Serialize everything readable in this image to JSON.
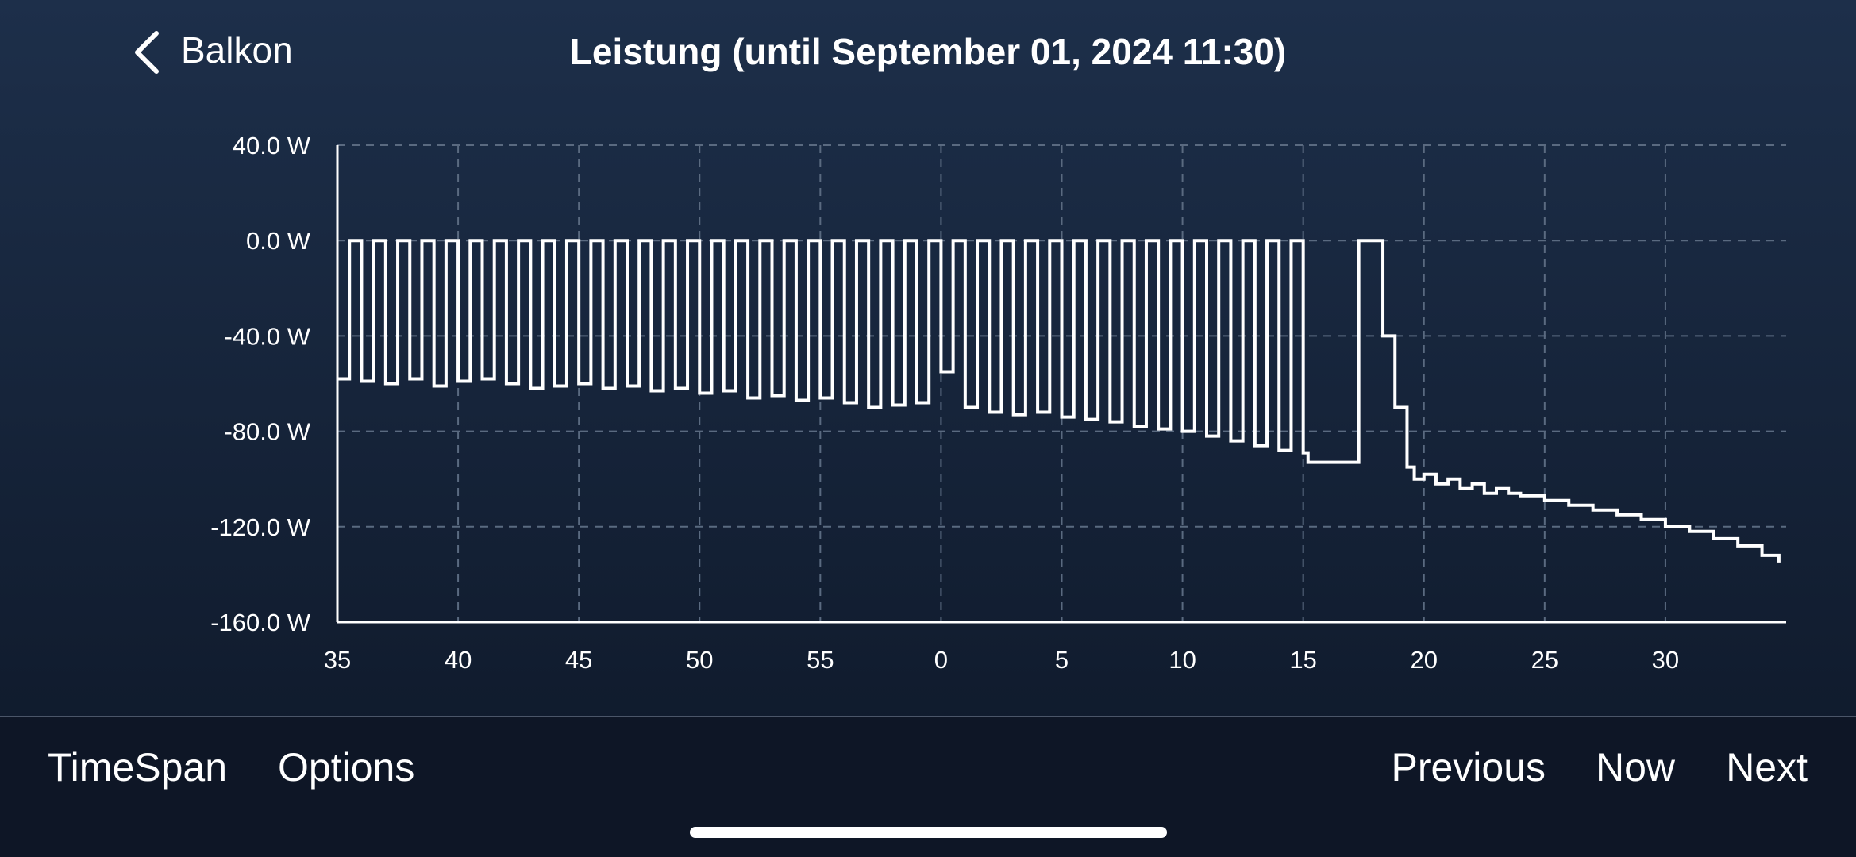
{
  "nav": {
    "back": "Balkon",
    "title": "Leistung (until September 01, 2024 11:30)"
  },
  "chart_data": {
    "type": "line",
    "step": "post",
    "color": "#ffffff",
    "grid": true,
    "xlim": [
      0,
      60
    ],
    "xticks": [
      {
        "value": 0,
        "label": "35"
      },
      {
        "value": 5,
        "label": "40"
      },
      {
        "value": 10,
        "label": "45"
      },
      {
        "value": 15,
        "label": "50"
      },
      {
        "value": 20,
        "label": "55"
      },
      {
        "value": 25,
        "label": "0"
      },
      {
        "value": 30,
        "label": "5"
      },
      {
        "value": 35,
        "label": "10"
      },
      {
        "value": 40,
        "label": "15"
      },
      {
        "value": 45,
        "label": "20"
      },
      {
        "value": 50,
        "label": "25"
      },
      {
        "value": 55,
        "label": "30"
      }
    ],
    "ylim": [
      -160,
      40
    ],
    "yticks": [
      {
        "value": -160,
        "label": "-160.0 W"
      },
      {
        "value": -120,
        "label": "-120.0 W"
      },
      {
        "value": -80,
        "label": "-80.0 W"
      },
      {
        "value": -40,
        "label": "-40.0 W"
      },
      {
        "value": 0,
        "label": "0.0 W"
      },
      {
        "value": 40,
        "label": "40.0 W"
      }
    ],
    "x": [
      0,
      0.5,
      1,
      1.5,
      2,
      2.5,
      3,
      3.5,
      4,
      4.5,
      5,
      5.5,
      6,
      6.5,
      7,
      7.5,
      8,
      8.5,
      9,
      9.5,
      10,
      10.5,
      11,
      11.5,
      12,
      12.5,
      13,
      13.5,
      14,
      14.5,
      15,
      15.5,
      16,
      16.5,
      17,
      17.5,
      18,
      18.5,
      19,
      19.5,
      20,
      20.5,
      21,
      21.5,
      22,
      22.5,
      23,
      23.5,
      24,
      24.5,
      25,
      25.5,
      26,
      26.5,
      27,
      27.5,
      28,
      28.5,
      29,
      29.5,
      30,
      30.5,
      31,
      31.5,
      32,
      32.5,
      33,
      33.5,
      34,
      34.5,
      35,
      35.5,
      36,
      36.5,
      37,
      37.5,
      38,
      38.5,
      39,
      39.5,
      40,
      40.2,
      42.3,
      43.3,
      43.8,
      44.3,
      44.6,
      45,
      45.5,
      46,
      46.5,
      47,
      47.5,
      48,
      48.5,
      49,
      50,
      51,
      52,
      53,
      54,
      55,
      56,
      57,
      58,
      59,
      59.7
    ],
    "values": [
      -58,
      0,
      -59,
      0,
      -60,
      0,
      -58,
      0,
      -61,
      0,
      -59,
      0,
      -58,
      0,
      -60,
      0,
      -62,
      0,
      -61,
      0,
      -60,
      0,
      -62,
      0,
      -61,
      0,
      -63,
      0,
      -62,
      0,
      -64,
      0,
      -63,
      0,
      -66,
      0,
      -65,
      0,
      -67,
      0,
      -66,
      0,
      -68,
      0,
      -70,
      0,
      -69,
      0,
      -68,
      0,
      -55,
      0,
      -70,
      0,
      -72,
      0,
      -73,
      0,
      -72,
      0,
      -74,
      0,
      -75,
      0,
      -76,
      0,
      -78,
      0,
      -79,
      0,
      -80,
      0,
      -82,
      0,
      -84,
      0,
      -86,
      0,
      -88,
      0,
      -89,
      -93,
      0,
      -40,
      -70,
      -95,
      -100,
      -98,
      -102,
      -100,
      -104,
      -102,
      -106,
      -104,
      -106,
      -107,
      -109,
      -111,
      -113,
      -115,
      -117,
      -120,
      -122,
      -125,
      -128,
      -132,
      -135
    ]
  },
  "toolbar": {
    "left": [
      "TimeSpan",
      "Options"
    ],
    "right": [
      "Previous",
      "Now",
      "Next"
    ]
  }
}
